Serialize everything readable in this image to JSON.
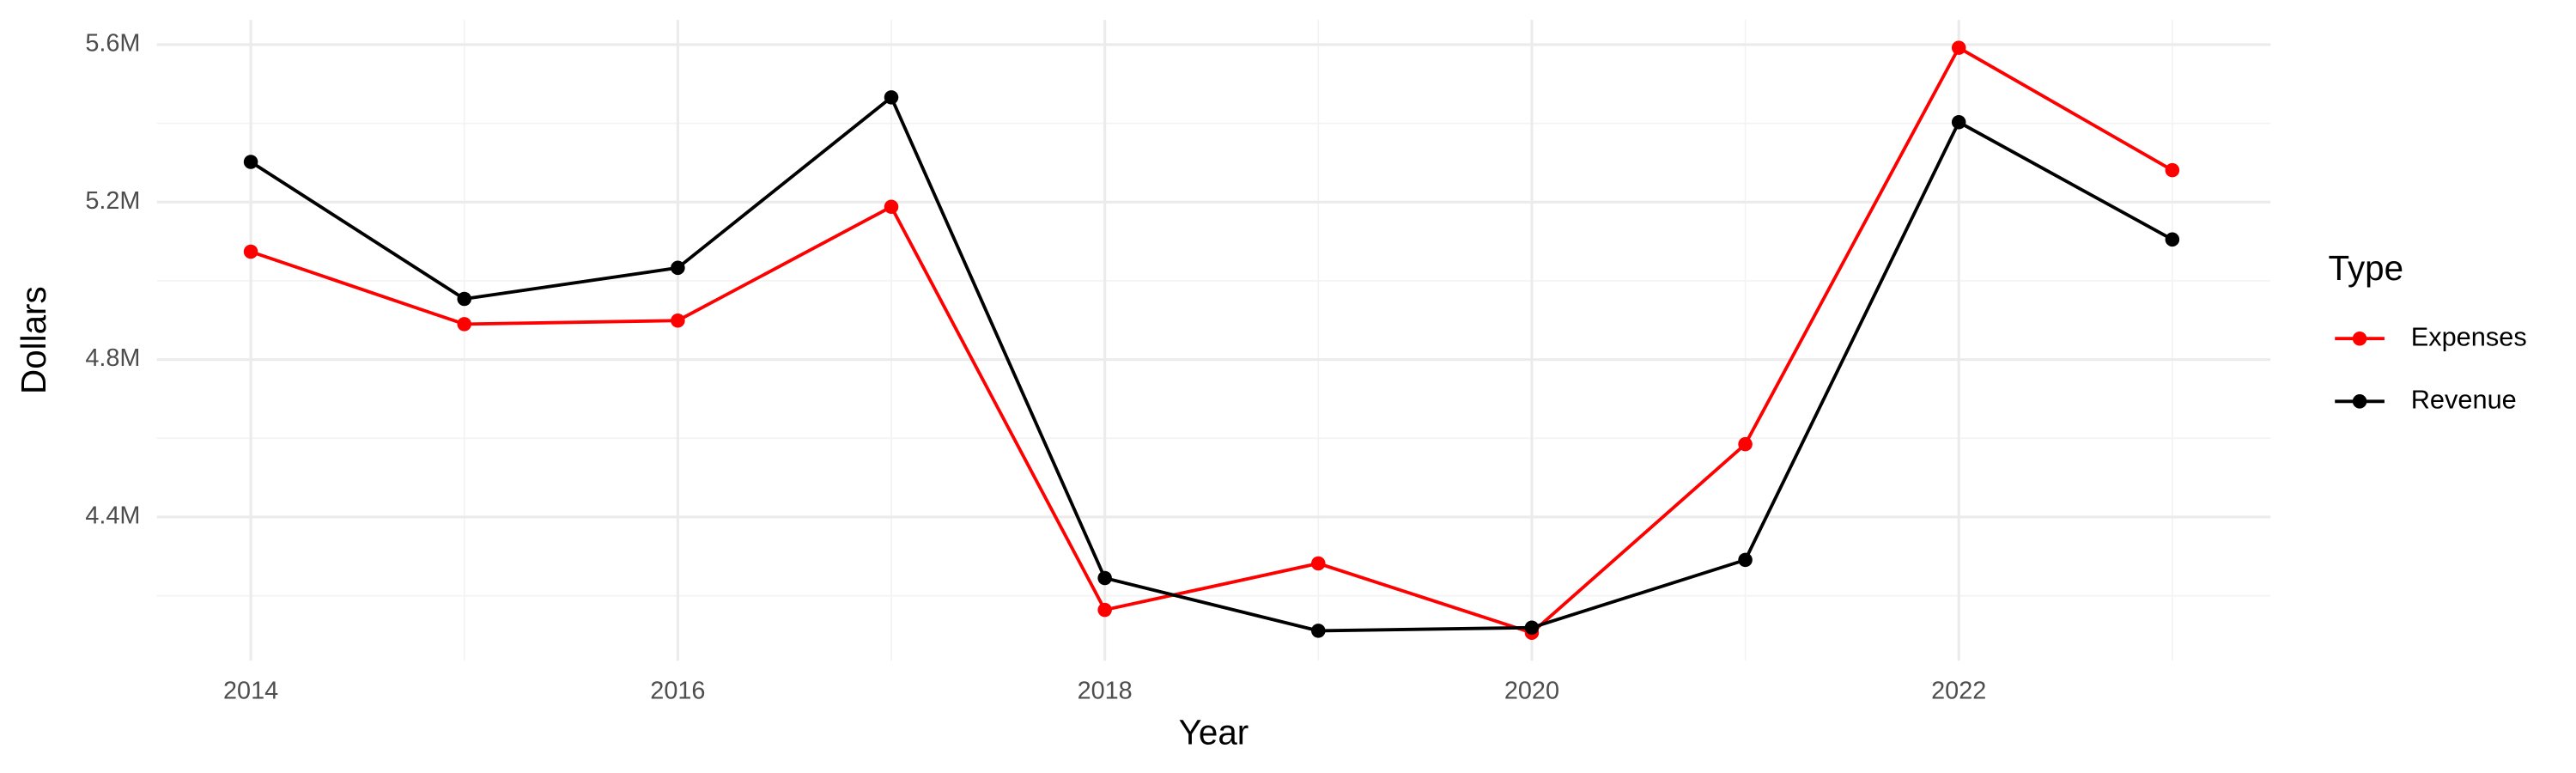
{
  "chart_data": {
    "type": "line",
    "x_label": "Year",
    "y_label": "Dollars",
    "legend_title": "Type",
    "legend_position": "right",
    "grid": true,
    "x": [
      2014,
      2015,
      2016,
      2017,
      2018,
      2019,
      2020,
      2021,
      2022,
      2023
    ],
    "series": [
      {
        "name": "Expenses",
        "color": "#ff0000",
        "values": [
          5074000,
          4890000,
          4899000,
          5188000,
          4164000,
          4282000,
          4106000,
          4585000,
          5592000,
          5281000
        ]
      },
      {
        "name": "Revenue",
        "color": "#000000",
        "values": [
          5302000,
          4954000,
          5033000,
          5466000,
          4245000,
          4111000,
          4119000,
          4291000,
          5403000,
          5105000
        ]
      }
    ],
    "xlim": [
      2013.56,
      2023.46
    ],
    "xticks": [
      2014,
      2016,
      2018,
      2020,
      2022
    ],
    "ylim": [
      4035000,
      5663000
    ],
    "yticks": [
      {
        "value": 4400000,
        "label": "4.4M"
      },
      {
        "value": 4800000,
        "label": "4.8M"
      },
      {
        "value": 5200000,
        "label": "5.2M"
      },
      {
        "value": 5600000,
        "label": "5.6M"
      }
    ]
  }
}
